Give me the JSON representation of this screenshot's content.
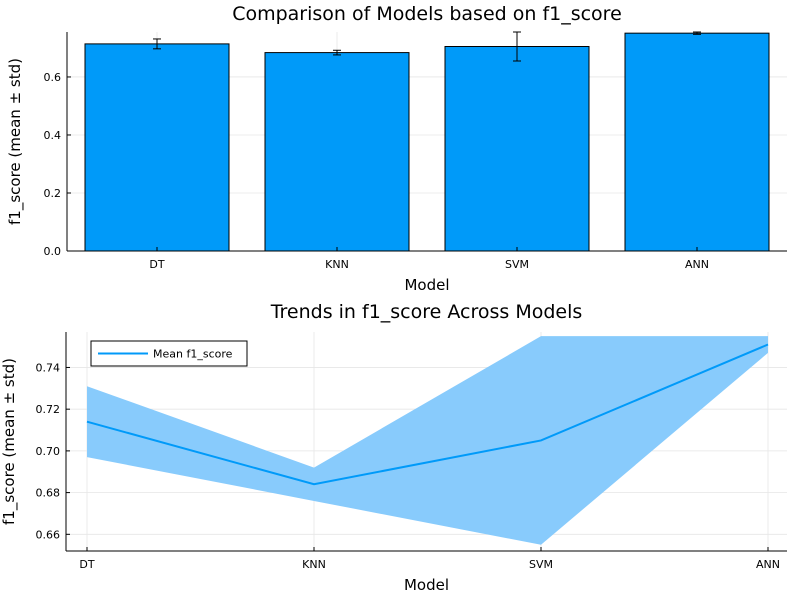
{
  "chart_data": [
    {
      "type": "bar",
      "title": "Comparison of Models based on f1_score",
      "xlabel": "Model",
      "ylabel": "f1_score (mean ± std)",
      "categories": [
        "DT",
        "KNN",
        "SVM",
        "ANN"
      ],
      "values": [
        0.714,
        0.684,
        0.705,
        0.751
      ],
      "errors": [
        0.017,
        0.008,
        0.05,
        0.004
      ],
      "ylim": [
        0,
        0.755
      ],
      "yticks": [
        0.0,
        0.2,
        0.4,
        0.6
      ],
      "ytick_labels": [
        "0.0",
        "0.2",
        "0.4",
        "0.6"
      ],
      "grid": true,
      "color": "#009af9"
    },
    {
      "type": "line",
      "title": "Trends in f1_score Across Models",
      "xlabel": "Model",
      "ylabel": "f1_score (mean ± std)",
      "categories": [
        "DT",
        "KNN",
        "SVM",
        "ANN"
      ],
      "series": [
        {
          "name": "Mean f1_score",
          "values": [
            0.714,
            0.684,
            0.705,
            0.751
          ],
          "lower": [
            0.697,
            0.676,
            0.655,
            0.747
          ],
          "upper": [
            0.731,
            0.692,
            0.755,
            0.755
          ]
        }
      ],
      "ylim": [
        0.652,
        0.757
      ],
      "yticks": [
        0.66,
        0.68,
        0.7,
        0.72,
        0.74
      ],
      "ytick_labels": [
        "0.66",
        "0.68",
        "0.70",
        "0.72",
        "0.74"
      ],
      "legend_position": "top-left",
      "grid": true,
      "color": "#009af9",
      "band_color": "#88cbfc"
    }
  ]
}
